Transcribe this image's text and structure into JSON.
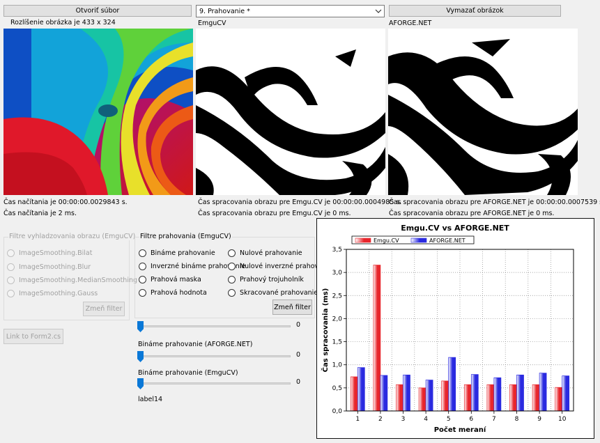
{
  "buttons": {
    "open_file": "Otvoriť súbor",
    "clear_image": "Vymazať obrázok",
    "change_filter_smoothing": "Zmeň filter",
    "change_filter_threshold": "Zmeň filter",
    "link_form2": "Link to Form2.cs"
  },
  "filter_combo": {
    "value": "9. Prahovanie *"
  },
  "labels": {
    "resolution": "Rozlíšenie obrázka je 433 x 324",
    "emgucv_title": "EmguCV",
    "aforge_title": "AFORGE.NET",
    "load_time_1": "Čas načítania je 00:00:00.0029843 s.",
    "load_time_2": "Čas načítania je 2 ms.",
    "emgu_time_1": "Čas spracovania obrazu pre Emgu.CV je 00:00:00.0004985 s.",
    "emgu_time_2": "Čas spracovania obrazu pre Emgu.CV je 0 ms.",
    "aforge_time_1": "Čas spracovania obrazu pre AFORGE.NET je 00:00:00.0007539 s.",
    "aforge_time_2": "Čas spracovania obrazu pre AFORGE.NET je 0 ms.",
    "binary_aforge": "Bináme prahovanie (AFORGE.NET)",
    "binary_emgu": "Bináme prahovanie (EmguCV)",
    "label14": "label14"
  },
  "smoothing_group": {
    "title": "Filtre vyhladzovania obrazu (EmguCV)",
    "options": [
      "ImageSmoothing.Bilat",
      "ImageSmoothing.Blur",
      "ImageSmoothing.MedianSmoothing",
      "ImageSmoothing.Gauss"
    ]
  },
  "threshold_group": {
    "title": "Filtre prahovania (EmguCV)",
    "left_options": [
      "Bináme prahovanie",
      "Inverzné bináme prahovanie",
      "Prahová maska",
      "Prahová hodnota"
    ],
    "right_options": [
      "Nulové prahovanie",
      "Nulové inverzné prahovanie",
      "Prahový trojuholník",
      "Skracované prahovanie"
    ]
  },
  "sliders": [
    {
      "value_label": "0",
      "value": 0
    },
    {
      "value_label": "0",
      "value": 0
    },
    {
      "value_label": "0",
      "value": 0
    }
  ],
  "colors": {
    "emgu": "#e8262c",
    "aforge": "#2a2ae0"
  },
  "chart_data": {
    "type": "bar",
    "title": "Emgu.CV vs AFORGE.NET",
    "xlabel": "Počet meraní",
    "ylabel": "Čas spracovania (ms)",
    "categories": [
      "1",
      "2",
      "3",
      "4",
      "5",
      "6",
      "7",
      "8",
      "9",
      "10"
    ],
    "series": [
      {
        "name": "Emgu.CV",
        "values": [
          0.74,
          3.16,
          0.57,
          0.5,
          0.65,
          0.57,
          0.57,
          0.57,
          0.57,
          0.51
        ]
      },
      {
        "name": "AFORGE.NET",
        "values": [
          0.94,
          0.77,
          0.78,
          0.67,
          1.16,
          0.79,
          0.72,
          0.78,
          0.82,
          0.76
        ]
      }
    ],
    "ylim": [
      0,
      3.5
    ],
    "yticks": [
      "0,0",
      "0,5",
      "1,0",
      "1,5",
      "2,0",
      "2,5",
      "3,0",
      "3,5"
    ],
    "grid": true,
    "legend": "top-left"
  }
}
